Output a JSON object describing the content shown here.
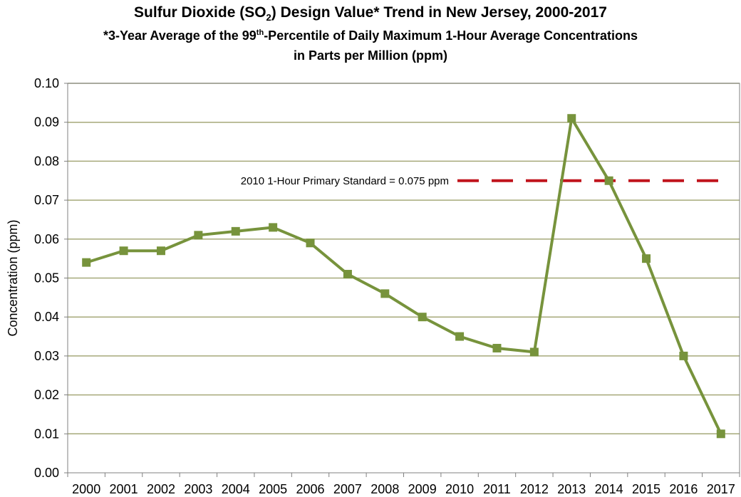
{
  "chart_data": {
    "type": "line",
    "title_part1": "Sulfur Dioxide (SO",
    "title_sub": "2",
    "title_part2": ") Design Value* Trend in New Jersey, 2000-2017",
    "subtitle1_part1": "*3-Year Average of the 99",
    "subtitle1_sup": "th",
    "subtitle1_part2": "-Percentile of Daily Maximum 1-Hour Average Concentrations",
    "subtitle2": "in Parts per Million (ppm)",
    "ylabel": "Concentration (ppm)",
    "xlabel": "",
    "ylim": [
      0,
      0.1
    ],
    "yticks": [
      "0.00",
      "0.01",
      "0.02",
      "0.03",
      "0.04",
      "0.05",
      "0.06",
      "0.07",
      "0.08",
      "0.09",
      "0.10"
    ],
    "categories": [
      "2000",
      "2001",
      "2002",
      "2003",
      "2004",
      "2005",
      "2006",
      "2007",
      "2008",
      "2009",
      "2010",
      "2011",
      "2012",
      "2013",
      "2014",
      "2015",
      "2016",
      "2017"
    ],
    "series": [
      {
        "values": [
          0.054,
          0.057,
          0.057,
          0.061,
          0.062,
          0.063,
          0.059,
          0.051,
          0.046,
          0.04,
          0.035,
          0.032,
          0.031,
          0.091,
          0.075,
          0.055,
          0.03,
          0.01
        ],
        "color": "#77933c"
      }
    ],
    "reference_line": {
      "value": 0.075,
      "label": "2010 1-Hour Primary Standard = 0.075 ppm",
      "color": "#c0141c",
      "style": "dashed"
    },
    "grid": "horizontal",
    "gridline_color": "#a6a97a"
  }
}
